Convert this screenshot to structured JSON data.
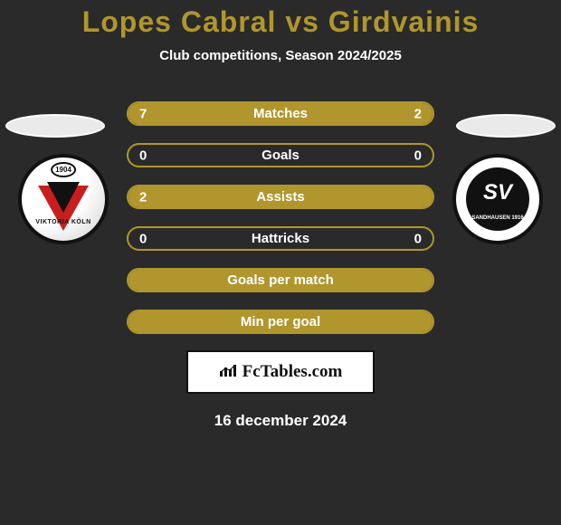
{
  "title": "Lopes Cabral vs Girdvainis",
  "subtitle": "Club competitions, Season 2024/2025",
  "colors": {
    "background": "#2a2a2a",
    "accent": "#b0962d",
    "text": "#ffffff",
    "border": "#b0962d"
  },
  "team_left": {
    "name": "Viktoria Köln",
    "year": "1904",
    "label_text": "VIKTORIA KÖLN",
    "logo_colors": {
      "outer": "#ffffff",
      "ring": "#111111",
      "red": "#c81e1e",
      "black": "#111111"
    }
  },
  "team_right": {
    "name": "SV Sandhausen",
    "year": "1916",
    "label_top": "SV",
    "label_bottom": "SANDHAUSEN\n1916",
    "logo_colors": {
      "outer": "#ffffff",
      "ring": "#111111",
      "ball": "#111111",
      "text": "#ffffff"
    }
  },
  "stats": [
    {
      "label": "Matches",
      "left_value": "7",
      "right_value": "2",
      "left_pct": 77,
      "right_pct": 23,
      "show_values": true
    },
    {
      "label": "Goals",
      "left_value": "0",
      "right_value": "0",
      "left_pct": 0,
      "right_pct": 0,
      "show_values": true
    },
    {
      "label": "Assists",
      "left_value": "2",
      "right_value": "",
      "left_pct": 100,
      "right_pct": 0,
      "show_values": true
    },
    {
      "label": "Hattricks",
      "left_value": "0",
      "right_value": "0",
      "left_pct": 0,
      "right_pct": 0,
      "show_values": true
    },
    {
      "label": "Goals per match",
      "left_value": "",
      "right_value": "",
      "left_pct": 100,
      "right_pct": 0,
      "show_values": false
    },
    {
      "label": "Min per goal",
      "left_value": "",
      "right_value": "",
      "left_pct": 100,
      "right_pct": 0,
      "show_values": false
    }
  ],
  "brand": {
    "text": "FcTables.com",
    "icon": "chart-icon"
  },
  "date": "16 december 2024"
}
